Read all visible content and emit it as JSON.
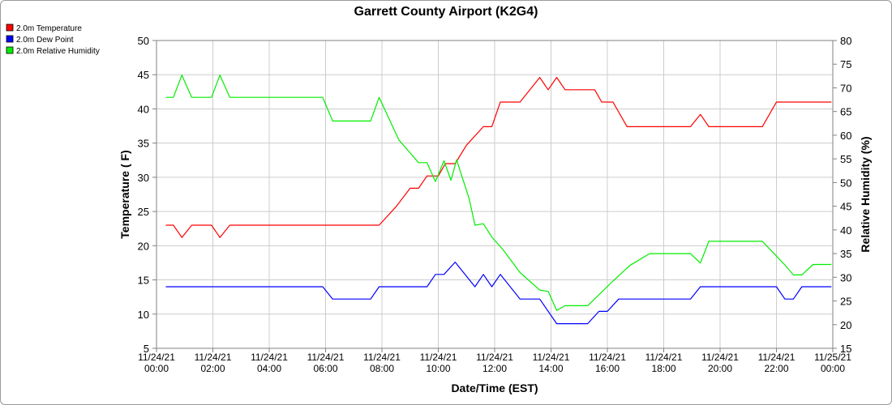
{
  "chart_data": {
    "type": "line",
    "title": "Garrett County Airport (K2G4)",
    "xlabel": "Date/Time (EST)",
    "ylabel": "Temperature ( F)",
    "y2label": "Relative Humidity (%)",
    "ylim": [
      5,
      50
    ],
    "y2lim": [
      15,
      80
    ],
    "yticks": [
      5,
      10,
      15,
      20,
      25,
      30,
      35,
      40,
      45,
      50
    ],
    "y2ticks": [
      15,
      20,
      25,
      30,
      35,
      40,
      45,
      50,
      55,
      60,
      65,
      70,
      75,
      80
    ],
    "xlim": [
      0,
      24
    ],
    "xticks": [
      {
        "x": 0,
        "date": "11/24/21",
        "time": "00:00"
      },
      {
        "x": 2,
        "date": "11/24/21",
        "time": "02:00"
      },
      {
        "x": 4,
        "date": "11/24/21",
        "time": "04:00"
      },
      {
        "x": 6,
        "date": "11/24/21",
        "time": "06:00"
      },
      {
        "x": 8,
        "date": "11/24/21",
        "time": "08:00"
      },
      {
        "x": 10,
        "date": "11/24/21",
        "time": "10:00"
      },
      {
        "x": 12,
        "date": "11/24/21",
        "time": "12:00"
      },
      {
        "x": 14,
        "date": "11/24/21",
        "time": "14:00"
      },
      {
        "x": 16,
        "date": "11/24/21",
        "time": "16:00"
      },
      {
        "x": 18,
        "date": "11/24/21",
        "time": "18:00"
      },
      {
        "x": 20,
        "date": "11/24/21",
        "time": "20:00"
      },
      {
        "x": 22,
        "date": "11/24/21",
        "time": "22:00"
      },
      {
        "x": 24,
        "date": "11/25/21",
        "time": "00:00"
      }
    ],
    "grid": true,
    "legend_position": "top-left",
    "series": [
      {
        "name": "2.0m Temperature",
        "color": "#ff0000",
        "axis": "left",
        "points": [
          [
            0.33,
            23
          ],
          [
            0.6,
            23
          ],
          [
            0.9,
            21.2
          ],
          [
            1.25,
            23
          ],
          [
            1.95,
            23
          ],
          [
            2.25,
            21.2
          ],
          [
            2.6,
            23
          ],
          [
            3.5,
            23
          ],
          [
            5,
            23
          ],
          [
            6.5,
            23
          ],
          [
            7.9,
            23
          ],
          [
            8.5,
            25.7
          ],
          [
            9.0,
            28.4
          ],
          [
            9.3,
            28.4
          ],
          [
            9.6,
            30.2
          ],
          [
            10.0,
            30.2
          ],
          [
            10.25,
            32
          ],
          [
            10.6,
            32
          ],
          [
            11.0,
            34.7
          ],
          [
            11.6,
            37.4
          ],
          [
            11.9,
            37.4
          ],
          [
            12.2,
            41
          ],
          [
            12.9,
            41
          ],
          [
            13.6,
            44.6
          ],
          [
            13.9,
            42.8
          ],
          [
            14.2,
            44.6
          ],
          [
            14.5,
            42.8
          ],
          [
            15.55,
            42.8
          ],
          [
            15.8,
            41
          ],
          [
            16.2,
            41
          ],
          [
            16.7,
            37.4
          ],
          [
            17.5,
            37.4
          ],
          [
            18.95,
            37.4
          ],
          [
            19.3,
            39.2
          ],
          [
            19.6,
            37.4
          ],
          [
            20.5,
            37.4
          ],
          [
            21.5,
            37.4
          ],
          [
            22.0,
            41
          ],
          [
            23,
            41
          ],
          [
            23.95,
            41
          ]
        ]
      },
      {
        "name": "2.0m Dew Point",
        "color": "#0000ff",
        "axis": "left",
        "points": [
          [
            0.33,
            14
          ],
          [
            2,
            14
          ],
          [
            4,
            14
          ],
          [
            5.9,
            14
          ],
          [
            6.25,
            12.2
          ],
          [
            7.6,
            12.2
          ],
          [
            7.9,
            14
          ],
          [
            9.6,
            14
          ],
          [
            9.9,
            15.8
          ],
          [
            10.2,
            15.8
          ],
          [
            10.6,
            17.6
          ],
          [
            11.3,
            14
          ],
          [
            11.6,
            15.8
          ],
          [
            11.9,
            14
          ],
          [
            12.2,
            15.8
          ],
          [
            12.9,
            12.2
          ],
          [
            13.6,
            12.2
          ],
          [
            14.2,
            8.6
          ],
          [
            15.3,
            8.6
          ],
          [
            15.7,
            10.4
          ],
          [
            16.0,
            10.4
          ],
          [
            16.4,
            12.2
          ],
          [
            18.95,
            12.2
          ],
          [
            19.3,
            14
          ],
          [
            20.5,
            14
          ],
          [
            22.0,
            14
          ],
          [
            22.3,
            12.2
          ],
          [
            22.6,
            12.2
          ],
          [
            22.9,
            14
          ],
          [
            23.95,
            14
          ]
        ]
      },
      {
        "name": "2.0m Relative Humidity",
        "color": "#00ee00",
        "axis": "right",
        "points": [
          [
            0.33,
            68
          ],
          [
            0.6,
            68
          ],
          [
            0.9,
            72.7
          ],
          [
            1.25,
            68
          ],
          [
            1.95,
            68
          ],
          [
            2.25,
            72.7
          ],
          [
            2.6,
            68
          ],
          [
            4,
            68
          ],
          [
            5.9,
            68
          ],
          [
            6.25,
            63
          ],
          [
            7.6,
            63
          ],
          [
            7.9,
            68
          ],
          [
            8.6,
            59
          ],
          [
            9.3,
            54.2
          ],
          [
            9.6,
            54.2
          ],
          [
            9.9,
            50.2
          ],
          [
            10.2,
            54.6
          ],
          [
            10.45,
            50.5
          ],
          [
            10.65,
            54.8
          ],
          [
            11.1,
            46.5
          ],
          [
            11.3,
            41
          ],
          [
            11.6,
            41.3
          ],
          [
            11.9,
            38.5
          ],
          [
            12.3,
            35.8
          ],
          [
            12.9,
            31
          ],
          [
            13.6,
            27.3
          ],
          [
            13.9,
            27
          ],
          [
            14.2,
            23
          ],
          [
            14.5,
            24
          ],
          [
            15.3,
            24
          ],
          [
            16.2,
            29.2
          ],
          [
            16.8,
            32.5
          ],
          [
            17.5,
            35
          ],
          [
            18.95,
            35
          ],
          [
            19.3,
            33
          ],
          [
            19.6,
            37.6
          ],
          [
            20.5,
            37.6
          ],
          [
            21.5,
            37.6
          ],
          [
            22.3,
            32.6
          ],
          [
            22.6,
            30.5
          ],
          [
            22.9,
            30.5
          ],
          [
            23.3,
            32.7
          ],
          [
            23.95,
            32.7
          ]
        ]
      }
    ]
  }
}
